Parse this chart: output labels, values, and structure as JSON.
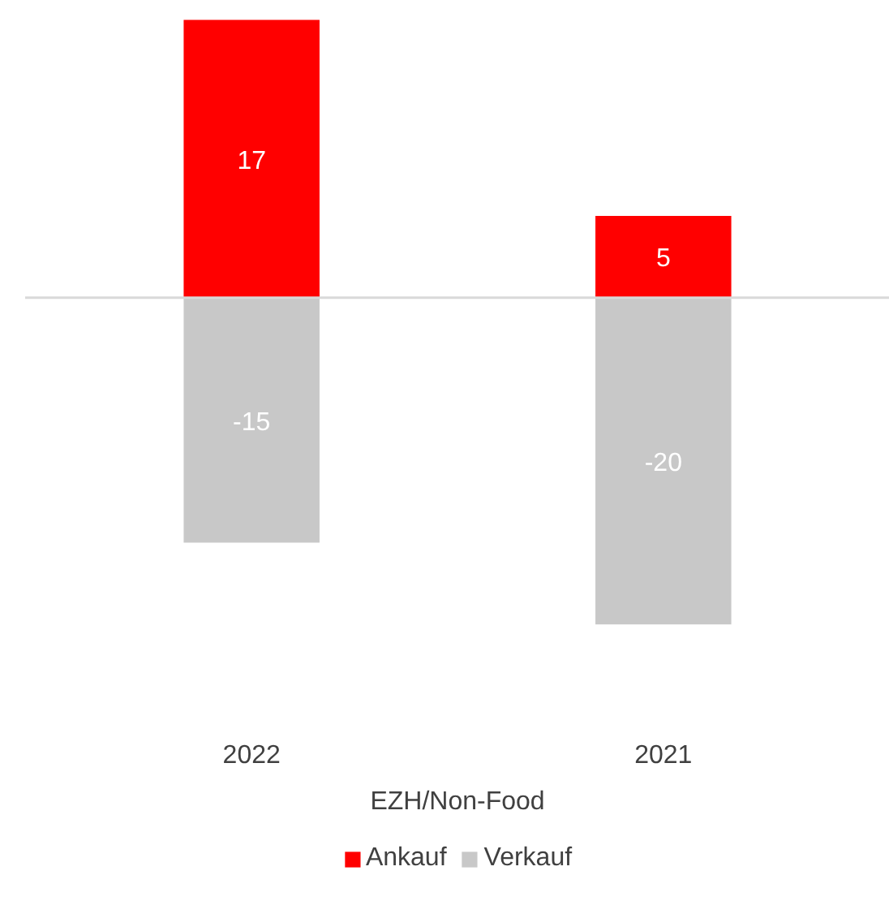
{
  "chart_data": {
    "type": "bar",
    "stacked": true,
    "categories": [
      "2022",
      "2021"
    ],
    "xlabel": "EZH/Non-Food",
    "series": [
      {
        "name": "Ankauf",
        "color": "#ff0000",
        "values": [
          17,
          5
        ]
      },
      {
        "name": "Verkauf",
        "color": "#c8c8c8",
        "values": [
          -15,
          -20
        ]
      }
    ],
    "data_labels": true,
    "legend": "bottom",
    "grid": false
  }
}
